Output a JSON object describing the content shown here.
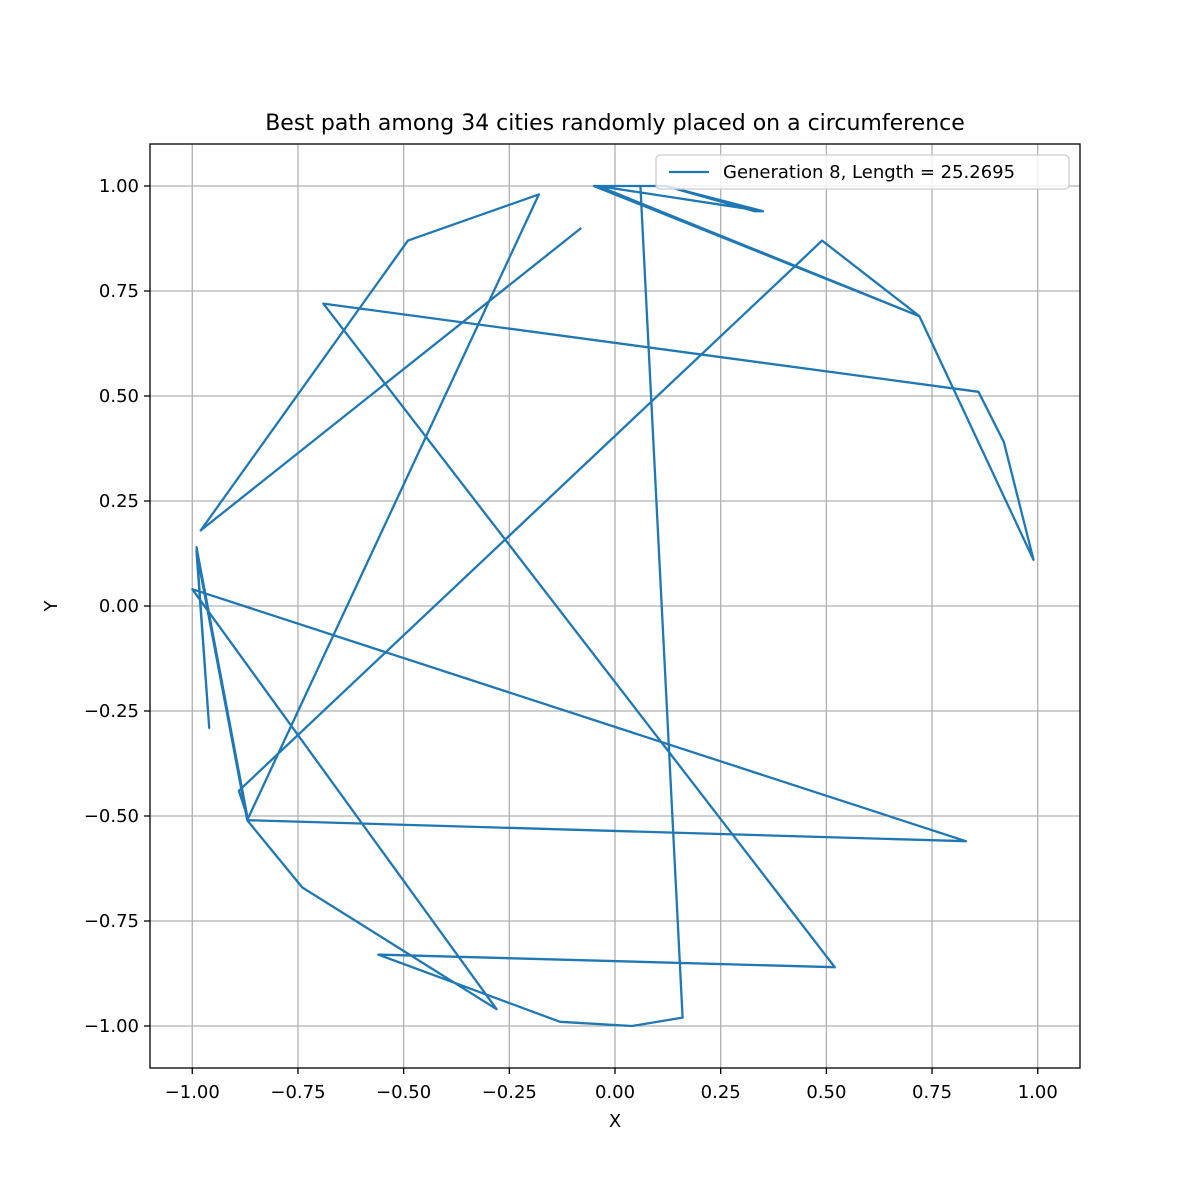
{
  "chart_data": {
    "type": "line",
    "title": "Best path among 34 cities randomly placed on a circumference",
    "xlabel": "X",
    "ylabel": "Y",
    "xlim": [
      -1.1,
      1.1
    ],
    "ylim": [
      -1.1,
      1.1
    ],
    "grid": true,
    "legend_position": "top-right",
    "xticks": [
      -1.0,
      -0.75,
      -0.5,
      -0.25,
      0.0,
      0.25,
      0.5,
      0.75,
      1.0
    ],
    "xtick_labels": [
      "−1.00",
      "−0.75",
      "−0.50",
      "−0.25",
      "0.00",
      "0.25",
      "0.50",
      "0.75",
      "1.00"
    ],
    "yticks": [
      1.0,
      0.75,
      0.5,
      0.25,
      0.0,
      -0.25,
      -0.5,
      -0.75,
      -1.0
    ],
    "ytick_labels": [
      "1.00",
      "0.75",
      "0.50",
      "0.25",
      "0.00",
      "−0.25",
      "−0.50",
      "−0.75",
      "−1.00"
    ],
    "series": [
      {
        "name": "Generation 8, Length = 25.2695",
        "color": "#1f77b4",
        "x": [
          0.35,
          -0.04,
          0.12,
          0.06,
          0.16,
          0.04,
          -0.13,
          -0.56,
          0.52,
          -0.69,
          0.86,
          0.92,
          0.99,
          0.72,
          -0.05,
          0.12,
          0.33,
          0.35,
          0.12,
          -0.04,
          0.72,
          0.49,
          -0.89,
          -0.87,
          -0.99,
          -0.96,
          -0.99,
          -0.87,
          0.83,
          -1.0,
          -0.28,
          -0.74,
          -0.87,
          -0.18,
          -0.49,
          -0.98,
          -0.08
        ],
        "y": [
          0.94,
          1.0,
          1.0,
          1.0,
          -0.98,
          -1.0,
          -0.99,
          -0.83,
          -0.86,
          0.72,
          0.51,
          0.39,
          0.11,
          0.69,
          1.0,
          1.0,
          0.94,
          0.94,
          1.0,
          1.0,
          0.69,
          0.87,
          -0.44,
          -0.5,
          0.14,
          -0.29,
          0.13,
          -0.51,
          -0.56,
          0.04,
          -0.96,
          -0.67,
          -0.51,
          0.98,
          0.87,
          0.18,
          0.9
        ]
      }
    ]
  }
}
